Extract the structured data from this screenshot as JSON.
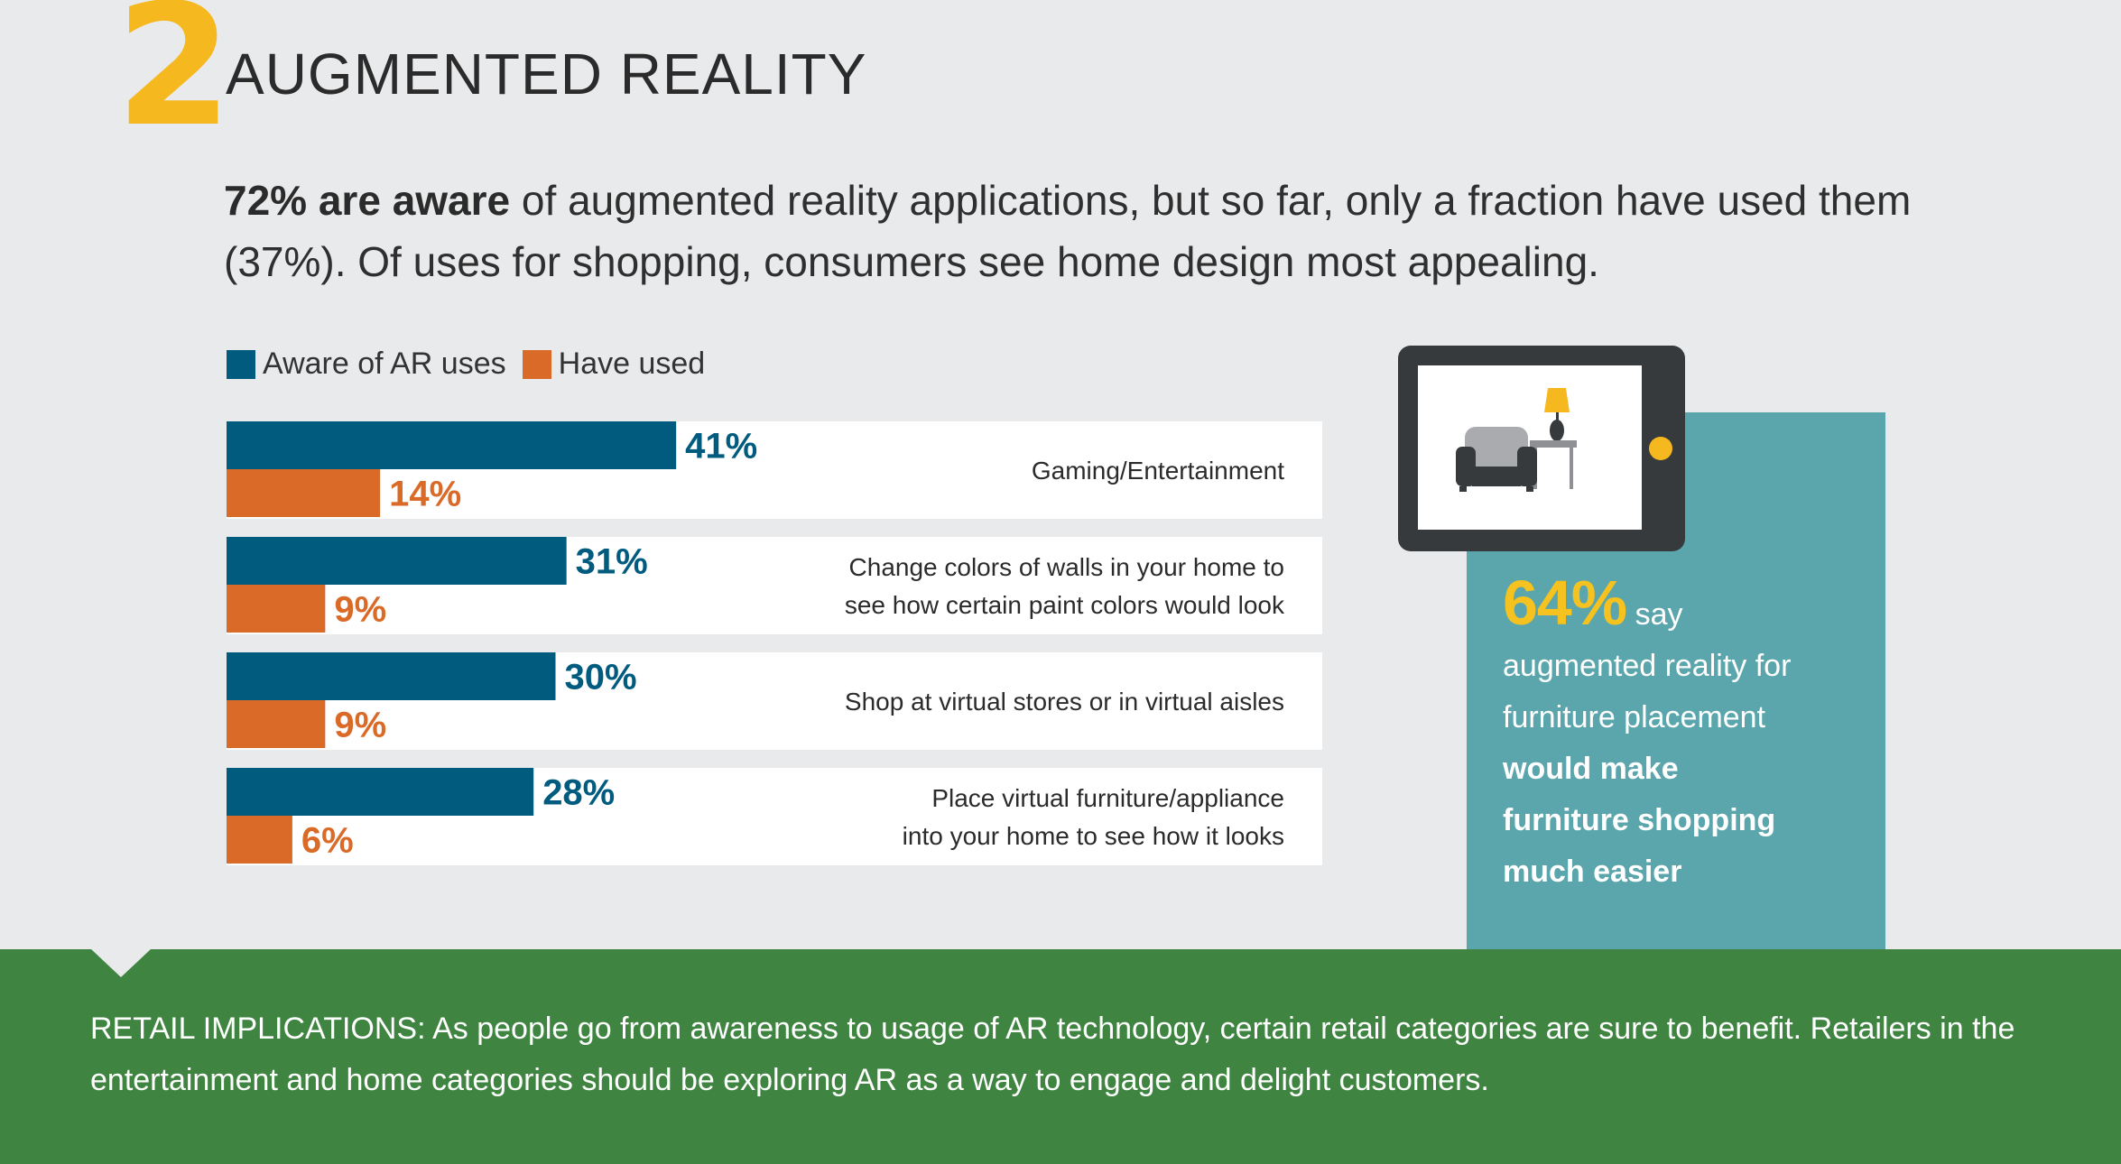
{
  "header": {
    "number": "2",
    "title": "AUGMENTED REALITY"
  },
  "intro": {
    "bold": "72% are aware",
    "rest": " of augmented reality applications, but so far, only a fraction have used them (37%). Of uses for shopping, consumers see home design most appealing."
  },
  "colors": {
    "aware": "#005b7f",
    "used": "#d96a27",
    "accent": "#f6b81f",
    "card": "#5aa6ac",
    "footer": "#3f8541"
  },
  "chart_data": {
    "type": "bar",
    "orientation": "horizontal",
    "legend_position": "top-left",
    "categories": [
      [
        "Gaming/Entertainment"
      ],
      [
        "Change colors of walls in your home to",
        "see how certain paint colors would look"
      ],
      [
        "Shop at virtual stores or in virtual aisles"
      ],
      [
        "Place virtual furniture/appliance",
        "into your home to see how it looks"
      ]
    ],
    "series": [
      {
        "name": "Aware of AR uses",
        "values": [
          41,
          31,
          30,
          28
        ],
        "labels": [
          "41%",
          "31%",
          "30%",
          "28%"
        ]
      },
      {
        "name": "Have used",
        "values": [
          14,
          9,
          9,
          6
        ],
        "labels": [
          "14%",
          "9%",
          "9%",
          "6%"
        ]
      }
    ],
    "xlim": [
      0,
      100
    ]
  },
  "card": {
    "stat": "64%",
    "say": "say",
    "line1": "augmented reality for",
    "line2": "furniture placement",
    "bold1": "would make",
    "bold2": "furniture shopping",
    "bold3": "much easier",
    "icons": [
      "tablet-icon",
      "armchair-icon",
      "lamp-icon",
      "side-table-icon"
    ]
  },
  "footer": {
    "text": "RETAIL IMPLICATIONS:  As people go from awareness to usage of AR technology, certain retail categories are sure to benefit. Retailers in the entertainment and home categories should be exploring AR as a way to engage and delight customers."
  }
}
